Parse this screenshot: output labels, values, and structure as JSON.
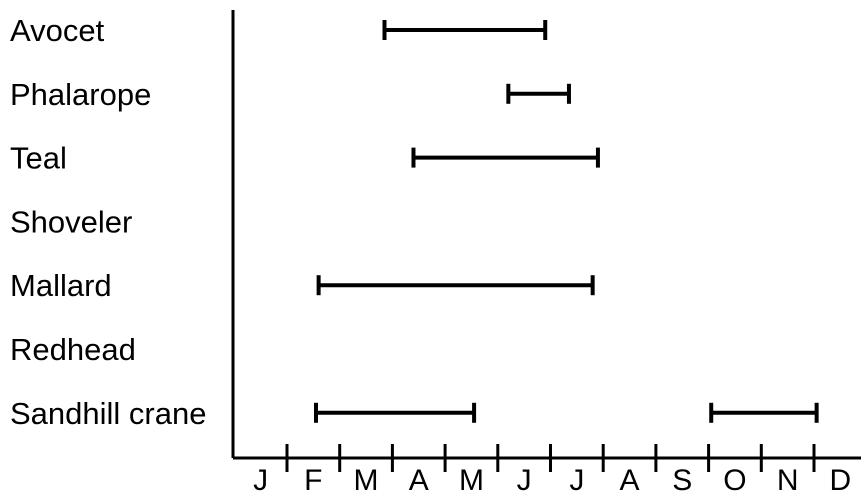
{
  "chart_data": {
    "type": "range-bar",
    "title": "",
    "xlabel": "",
    "ylabel": "",
    "x_ticks": [
      "J",
      "F",
      "M",
      "A",
      "M",
      "J",
      "J",
      "A",
      "S",
      "O",
      "N",
      "D"
    ],
    "categories": [
      "Avocet",
      "Phalarope",
      "Teal",
      "Shoveler",
      "Mallard",
      "Redhead",
      "Sandhill crane"
    ],
    "ranges": [
      {
        "category": "Avocet",
        "segments": [
          [
            2.85,
            5.9
          ]
        ]
      },
      {
        "category": "Phalarope",
        "segments": [
          [
            5.2,
            6.35
          ]
        ]
      },
      {
        "category": "Teal",
        "segments": [
          [
            3.4,
            6.9
          ]
        ]
      },
      {
        "category": "Shoveler",
        "segments": []
      },
      {
        "category": "Mallard",
        "segments": [
          [
            1.6,
            6.8
          ]
        ]
      },
      {
        "category": "Redhead",
        "segments": []
      },
      {
        "category": "Sandhill crane",
        "segments": [
          [
            1.55,
            4.55
          ],
          [
            9.05,
            11.05
          ]
        ]
      }
    ],
    "grid": false,
    "legend": "none"
  }
}
